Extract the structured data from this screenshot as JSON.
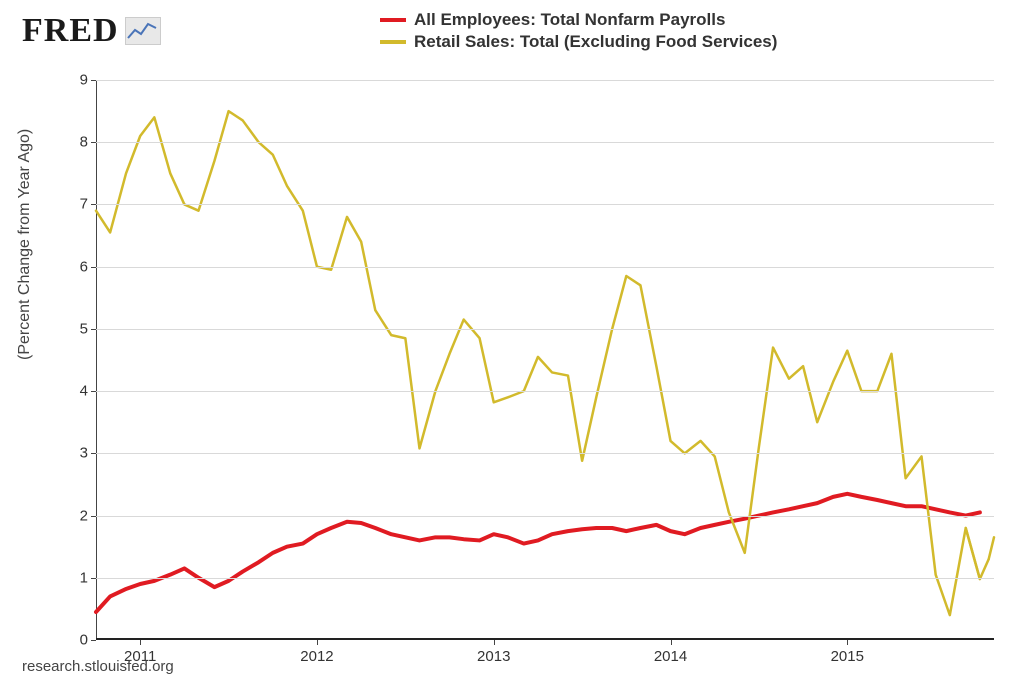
{
  "logo": {
    "text": "FRED",
    "icon_name": "chart-icon"
  },
  "legend": [
    {
      "color": "#e01b22",
      "label": "All Employees: Total Nonfarm Payrolls"
    },
    {
      "color": "#d2ba2c",
      "label": "Retail Sales: Total (Excluding Food Services)"
    }
  ],
  "chart": {
    "type": "line",
    "ylabel": "(Percent Change from Year Ago)",
    "ylim": [
      0,
      9
    ],
    "ytick_step": 1,
    "yticks": [
      0,
      1,
      2,
      3,
      4,
      5,
      6,
      7,
      8,
      9
    ],
    "xlim": [
      2010.75,
      2015.83
    ],
    "xticks": [
      2011,
      2012,
      2013,
      2014,
      2015
    ],
    "xtick_labels": [
      "2011",
      "2012",
      "2013",
      "2014",
      "2015"
    ],
    "background_color": "#ffffff",
    "grid_color": "#d9d9d9",
    "axis_color": "#222222",
    "label_fontsize": 16,
    "tick_fontsize": 15,
    "line_width_red": 4,
    "line_width_yellow": 2.5,
    "series": [
      {
        "name": "payrolls",
        "color": "#e01b22",
        "width": 4,
        "x": [
          2010.75,
          2010.83,
          2010.92,
          2011.0,
          2011.08,
          2011.17,
          2011.25,
          2011.33,
          2011.42,
          2011.5,
          2011.58,
          2011.67,
          2011.75,
          2011.83,
          2011.92,
          2012.0,
          2012.08,
          2012.17,
          2012.25,
          2012.33,
          2012.42,
          2012.5,
          2012.58,
          2012.67,
          2012.75,
          2012.83,
          2012.92,
          2013.0,
          2013.08,
          2013.17,
          2013.25,
          2013.33,
          2013.42,
          2013.5,
          2013.58,
          2013.67,
          2013.75,
          2013.83,
          2013.92,
          2014.0,
          2014.08,
          2014.17,
          2014.25,
          2014.33,
          2014.42,
          2014.5,
          2014.58,
          2014.67,
          2014.75,
          2014.83,
          2014.92,
          2015.0,
          2015.08,
          2015.17,
          2015.25,
          2015.33,
          2015.42,
          2015.5,
          2015.58,
          2015.67,
          2015.75
        ],
        "y": [
          0.45,
          0.7,
          0.82,
          0.9,
          0.95,
          1.05,
          1.15,
          1.0,
          0.85,
          0.95,
          1.1,
          1.25,
          1.4,
          1.5,
          1.55,
          1.7,
          1.8,
          1.9,
          1.88,
          1.8,
          1.7,
          1.65,
          1.6,
          1.65,
          1.65,
          1.62,
          1.6,
          1.7,
          1.65,
          1.55,
          1.6,
          1.7,
          1.75,
          1.78,
          1.8,
          1.8,
          1.75,
          1.8,
          1.85,
          1.75,
          1.7,
          1.8,
          1.85,
          1.9,
          1.95,
          2.0,
          2.05,
          2.1,
          2.15,
          2.2,
          2.3,
          2.35,
          2.3,
          2.25,
          2.2,
          2.15,
          2.15,
          2.1,
          2.05,
          2.0,
          2.05
        ]
      },
      {
        "name": "retail",
        "color": "#d2ba2c",
        "width": 2.5,
        "x": [
          2010.75,
          2010.83,
          2010.92,
          2011.0,
          2011.08,
          2011.17,
          2011.25,
          2011.33,
          2011.42,
          2011.5,
          2011.58,
          2011.67,
          2011.75,
          2011.83,
          2011.92,
          2012.0,
          2012.08,
          2012.17,
          2012.25,
          2012.33,
          2012.42,
          2012.5,
          2012.58,
          2012.67,
          2012.75,
          2012.83,
          2012.92,
          2013.0,
          2013.08,
          2013.17,
          2013.25,
          2013.33,
          2013.42,
          2013.5,
          2013.58,
          2013.67,
          2013.75,
          2013.83,
          2013.92,
          2014.0,
          2014.08,
          2014.17,
          2014.25,
          2014.33,
          2014.42,
          2014.5,
          2014.58,
          2014.67,
          2014.75,
          2014.83,
          2014.92,
          2015.0,
          2015.08,
          2015.17,
          2015.25,
          2015.33,
          2015.42,
          2015.5,
          2015.58,
          2015.67,
          2015.75
        ],
        "y": [
          6.9,
          6.55,
          7.5,
          8.1,
          8.4,
          7.5,
          7.0,
          6.9,
          7.7,
          8.5,
          8.35,
          8.0,
          7.8,
          7.3,
          6.9,
          6.0,
          5.95,
          6.8,
          6.4,
          5.3,
          4.9,
          4.85,
          3.08,
          4.0,
          4.6,
          5.15,
          4.85,
          3.82,
          3.9,
          4.0,
          4.55,
          4.3,
          4.25,
          2.88,
          3.9,
          5.0,
          5.85,
          5.7,
          4.4,
          3.2,
          3.0,
          3.2,
          2.95,
          2.05,
          1.4,
          3.1,
          4.7,
          4.2,
          4.4,
          3.5,
          4.15,
          4.65,
          4.0,
          4.0,
          4.6,
          2.6,
          2.95,
          1.05,
          0.4,
          1.8,
          0.98
        ]
      },
      {
        "name": "retail_tail",
        "color": "#d2ba2c",
        "width": 2.5,
        "x": [
          2015.67,
          2015.75,
          2015.8
        ],
        "y": [
          1.8,
          0.98,
          1.3
        ]
      },
      {
        "name": "retail_tail2",
        "color": "#d2ba2c",
        "width": 2.5,
        "x": [
          2015.8,
          2015.83
        ],
        "y": [
          1.3,
          1.65
        ]
      }
    ]
  },
  "footer": "research.stlouisfed.org"
}
